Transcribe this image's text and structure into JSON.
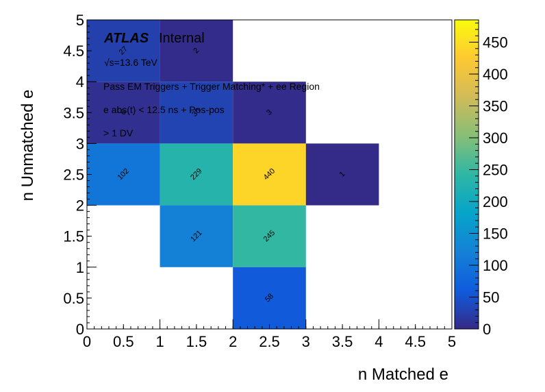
{
  "chart_data": {
    "type": "heatmap",
    "xlabel": "n Matched e",
    "ylabel": "n Unmatched e",
    "xlim": [
      0,
      5
    ],
    "ylim": [
      0,
      5
    ],
    "x_ticks": [
      "0",
      "0.5",
      "1",
      "1.5",
      "2",
      "2.5",
      "3",
      "3.5",
      "4",
      "4.5",
      "5"
    ],
    "y_ticks": [
      "0",
      "0.5",
      "1",
      "1.5",
      "2",
      "2.5",
      "3",
      "3.5",
      "4",
      "4.5",
      "5"
    ],
    "colorbar": {
      "range": [
        0,
        485
      ],
      "ticks": [
        "0",
        "50",
        "100",
        "150",
        "200",
        "250",
        "300",
        "350",
        "400",
        "450"
      ]
    },
    "bin_width": 1,
    "cells": [
      {
        "x": 0,
        "y": 4,
        "value": 27
      },
      {
        "x": 1,
        "y": 4,
        "value": 2
      },
      {
        "x": 0,
        "y": 3,
        "value": 6
      },
      {
        "x": 1,
        "y": 3,
        "value": 30
      },
      {
        "x": 2,
        "y": 3,
        "value": 3
      },
      {
        "x": 0,
        "y": 2,
        "value": 102
      },
      {
        "x": 1,
        "y": 2,
        "value": 229
      },
      {
        "x": 2,
        "y": 2,
        "value": 440
      },
      {
        "x": 3,
        "y": 2,
        "value": 1
      },
      {
        "x": 1,
        "y": 1,
        "value": 121
      },
      {
        "x": 2,
        "y": 1,
        "value": 245
      },
      {
        "x": 2,
        "y": 0,
        "value": 58
      }
    ],
    "annotations": {
      "atlas": "ATLAS",
      "atlas_suffix": "Internal",
      "energy": "√s=13.6 TeV",
      "line1": "Pass EM Triggers + Trigger Matching* + ee Region",
      "line2": "e abs(t) < 12.5 ns + Pos-pos",
      "line3": "> 1 DV"
    }
  }
}
